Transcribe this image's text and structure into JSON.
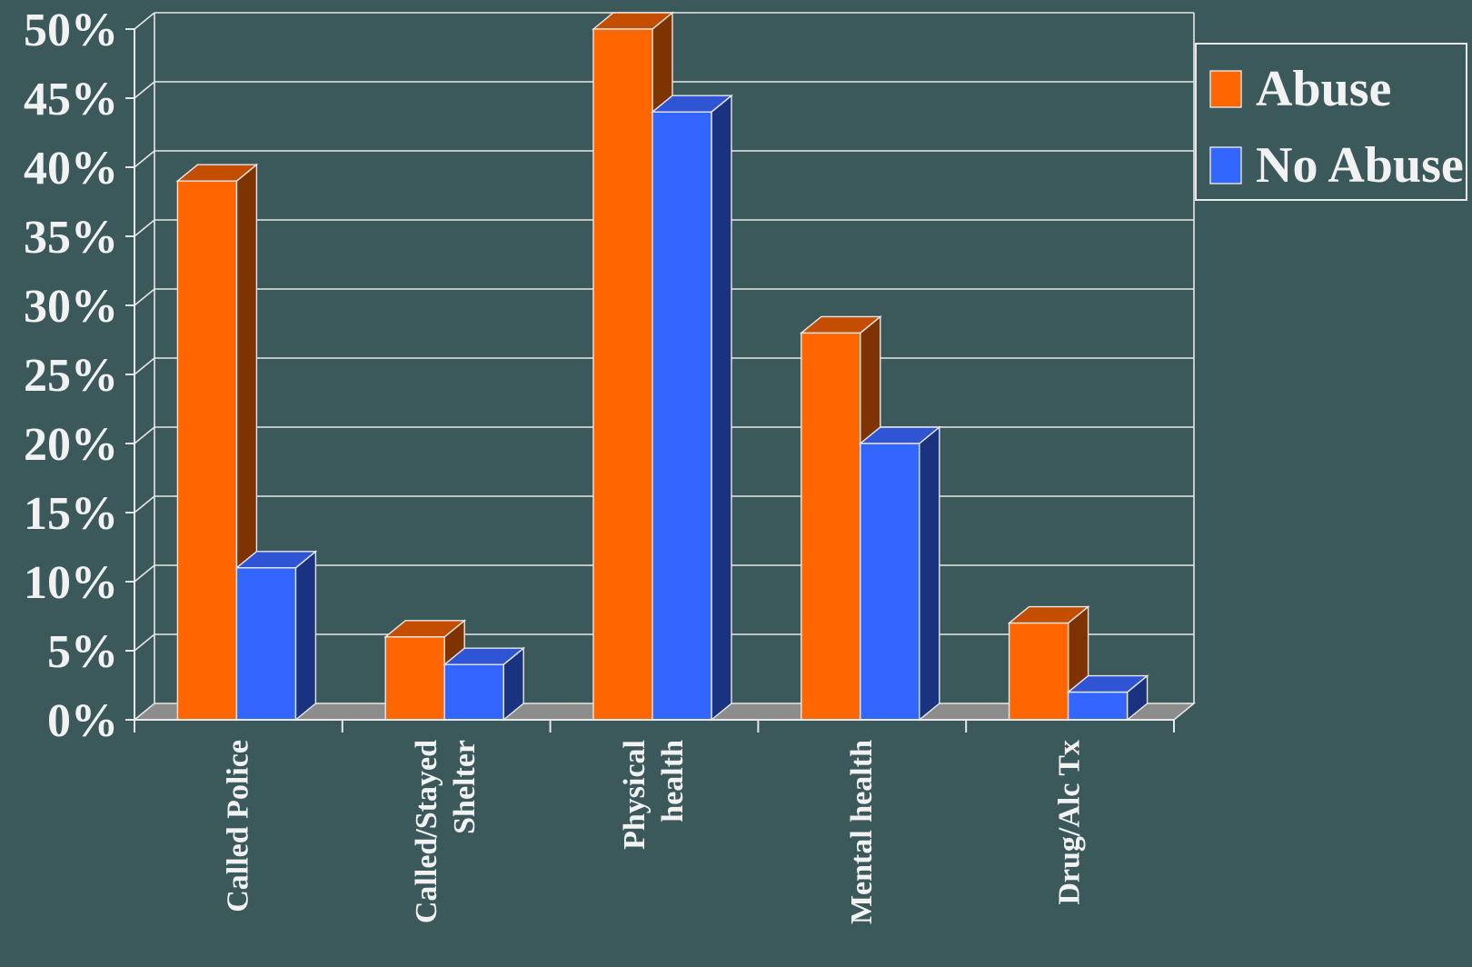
{
  "chart_data": {
    "type": "bar",
    "style": "3d-clustered-column",
    "categories": [
      [
        "Called Police"
      ],
      [
        "Called/Stayed",
        "Shelter"
      ],
      [
        "Physical",
        "health"
      ],
      [
        "Mental health"
      ],
      [
        "Drug/Alc Tx"
      ]
    ],
    "series": [
      {
        "name": "Abuse",
        "values": [
          39,
          6,
          50,
          28,
          7
        ],
        "color": "#ff6600",
        "side": "#7f3300",
        "top": "#c44e00"
      },
      {
        "name": "No Abuse",
        "values": [
          11,
          4,
          44,
          20,
          2
        ],
        "color": "#3366ff",
        "side": "#1a3380",
        "top": "#2f55d4"
      }
    ],
    "y_ticks": [
      "0%",
      "5%",
      "10%",
      "15%",
      "20%",
      "25%",
      "30%",
      "35%",
      "40%",
      "45%",
      "50%"
    ],
    "ylim": [
      0,
      50
    ],
    "y_step": 5,
    "grid": true,
    "legend_position": "top-right",
    "colors": {
      "background": "#3b585b",
      "grid": "#e8e8e8",
      "floor": "#8c8c8c",
      "text": "#f2f2f2"
    }
  }
}
